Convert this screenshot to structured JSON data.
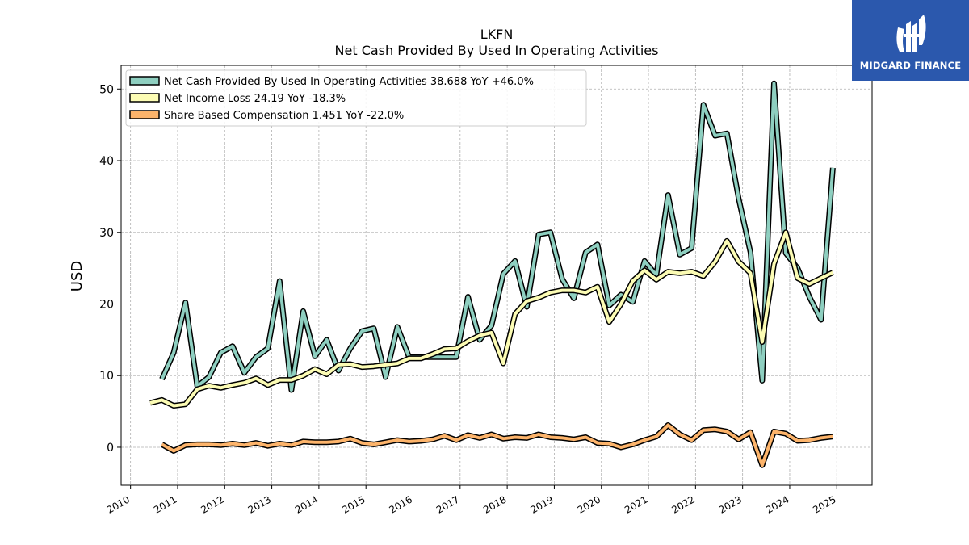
{
  "brand": {
    "name": "MIDGARD FINANCE",
    "background": "#2b58ad"
  },
  "chart_data": {
    "type": "line",
    "title": "LKFN",
    "subtitle": "Net Cash Provided By Used In Operating Activities",
    "ylabel": "USD",
    "xlabel": "",
    "xlim": [
      2009.8,
      2025.75
    ],
    "ylim": [
      -5.3,
      53.3
    ],
    "yticks": [
      0,
      10,
      20,
      30,
      40,
      50
    ],
    "xticks": [
      "2010",
      "2011",
      "2012",
      "2013",
      "2014",
      "2015",
      "2016",
      "2017",
      "2018",
      "2019",
      "2020",
      "2021",
      "2022",
      "2023",
      "2024",
      "2025"
    ],
    "grid": true,
    "legend_position": "top-left",
    "series": [
      {
        "name": "Net Cash Provided By Used In Operating Activities",
        "legend": "Net Cash Provided By Used In Operating Activities  38.688 YoY +46.0%",
        "color": "#8ecfc0",
        "x": [
          "2010-09",
          "2010-12",
          "2011-03",
          "2011-06",
          "2011-09",
          "2011-12",
          "2012-03",
          "2012-06",
          "2012-09",
          "2012-12",
          "2013-03",
          "2013-06",
          "2013-09",
          "2013-12",
          "2014-03",
          "2014-06",
          "2014-09",
          "2014-12",
          "2015-03",
          "2015-06",
          "2015-09",
          "2015-12",
          "2016-03",
          "2016-06",
          "2016-09",
          "2016-12",
          "2017-03",
          "2017-06",
          "2017-09",
          "2017-12",
          "2018-03",
          "2018-06",
          "2018-09",
          "2018-12",
          "2019-03",
          "2019-06",
          "2019-09",
          "2019-12",
          "2020-03",
          "2020-06",
          "2020-09",
          "2020-12",
          "2021-03",
          "2021-06",
          "2021-09",
          "2021-12",
          "2022-03",
          "2022-06",
          "2022-09",
          "2022-12",
          "2023-03",
          "2023-06",
          "2023-09",
          "2023-12",
          "2024-03",
          "2024-06",
          "2024-09",
          "2024-12"
        ],
        "values": [
          9.5,
          13.2,
          20.2,
          8.5,
          9.8,
          13.2,
          14.1,
          10.4,
          12.6,
          13.8,
          23.2,
          8.0,
          19.0,
          12.7,
          15.0,
          10.7,
          13.8,
          16.2,
          16.6,
          9.8,
          16.8,
          12.6,
          12.6,
          12.6,
          12.6,
          12.6,
          21.0,
          15.0,
          17.0,
          24.2,
          26.0,
          19.6,
          29.7,
          30.0,
          23.5,
          20.8,
          27.2,
          28.3,
          19.8,
          21.3,
          20.3,
          26.0,
          24.0,
          35.2,
          26.9,
          27.8,
          47.8,
          43.5,
          43.8,
          34.7,
          27.2,
          9.3,
          50.8,
          27.1,
          25.0,
          21.0,
          17.8,
          39.0
        ]
      },
      {
        "name": "Net Income Loss",
        "legend": "Net Income Loss  24.19 YoY -18.3%",
        "color": "#fcfcb4",
        "x": [
          "2010-06",
          "2010-09",
          "2010-12",
          "2011-03",
          "2011-06",
          "2011-09",
          "2011-12",
          "2012-03",
          "2012-06",
          "2012-09",
          "2012-12",
          "2013-03",
          "2013-06",
          "2013-09",
          "2013-12",
          "2014-03",
          "2014-06",
          "2014-09",
          "2014-12",
          "2015-03",
          "2015-06",
          "2015-09",
          "2015-12",
          "2016-03",
          "2016-06",
          "2016-09",
          "2016-12",
          "2017-03",
          "2017-06",
          "2017-09",
          "2017-12",
          "2018-03",
          "2018-06",
          "2018-09",
          "2018-12",
          "2019-03",
          "2019-06",
          "2019-09",
          "2019-12",
          "2020-03",
          "2020-06",
          "2020-09",
          "2020-12",
          "2021-03",
          "2021-06",
          "2021-09",
          "2021-12",
          "2022-03",
          "2022-06",
          "2022-09",
          "2022-12",
          "2023-03",
          "2023-06",
          "2023-09",
          "2023-12",
          "2024-03",
          "2024-06",
          "2024-09",
          "2024-12"
        ],
        "values": [
          6.2,
          6.6,
          5.8,
          6.0,
          8.1,
          8.6,
          8.3,
          8.7,
          9.0,
          9.6,
          8.7,
          9.4,
          9.4,
          10.0,
          10.9,
          10.2,
          11.5,
          11.6,
          11.2,
          11.3,
          11.5,
          11.7,
          12.4,
          12.4,
          13.0,
          13.7,
          13.8,
          14.8,
          15.6,
          16.0,
          11.7,
          18.6,
          20.4,
          20.9,
          21.6,
          21.9,
          21.9,
          21.6,
          22.4,
          17.5,
          20.0,
          23.2,
          24.7,
          23.4,
          24.5,
          24.3,
          24.5,
          23.9,
          25.9,
          28.8,
          25.9,
          24.3,
          14.7,
          25.6,
          30.0,
          23.6,
          22.8,
          23.6,
          24.4
        ]
      },
      {
        "name": "Share Based Compensation",
        "legend": "Share Based Compensation  1.451 YoY -22.0%",
        "color": "#fdb46b",
        "x": [
          "2010-09",
          "2010-12",
          "2011-03",
          "2011-06",
          "2011-09",
          "2011-12",
          "2012-03",
          "2012-06",
          "2012-09",
          "2012-12",
          "2013-03",
          "2013-06",
          "2013-09",
          "2013-12",
          "2014-03",
          "2014-06",
          "2014-09",
          "2014-12",
          "2015-03",
          "2015-06",
          "2015-09",
          "2015-12",
          "2016-03",
          "2016-06",
          "2016-09",
          "2016-12",
          "2017-03",
          "2017-06",
          "2017-09",
          "2017-12",
          "2018-03",
          "2018-06",
          "2018-09",
          "2018-12",
          "2019-03",
          "2019-06",
          "2019-09",
          "2019-12",
          "2020-03",
          "2020-06",
          "2020-09",
          "2020-12",
          "2021-03",
          "2021-06",
          "2021-09",
          "2021-12",
          "2022-03",
          "2022-06",
          "2022-09",
          "2022-12",
          "2023-03",
          "2023-06",
          "2023-09",
          "2023-12",
          "2024-03",
          "2024-06",
          "2024-09",
          "2024-12"
        ],
        "values": [
          0.4,
          -0.5,
          0.3,
          0.4,
          0.4,
          0.3,
          0.5,
          0.3,
          0.6,
          0.2,
          0.5,
          0.3,
          0.8,
          0.7,
          0.7,
          0.8,
          1.2,
          0.6,
          0.4,
          0.7,
          1.0,
          0.8,
          0.9,
          1.1,
          1.6,
          1.0,
          1.7,
          1.3,
          1.8,
          1.2,
          1.4,
          1.3,
          1.8,
          1.4,
          1.3,
          1.1,
          1.4,
          0.6,
          0.5,
          0.0,
          0.4,
          1.0,
          1.5,
          3.1,
          1.8,
          1.0,
          2.4,
          2.5,
          2.2,
          1.1,
          2.1,
          -2.5,
          2.2,
          1.9,
          0.9,
          1.0,
          1.3,
          1.5
        ]
      }
    ]
  }
}
